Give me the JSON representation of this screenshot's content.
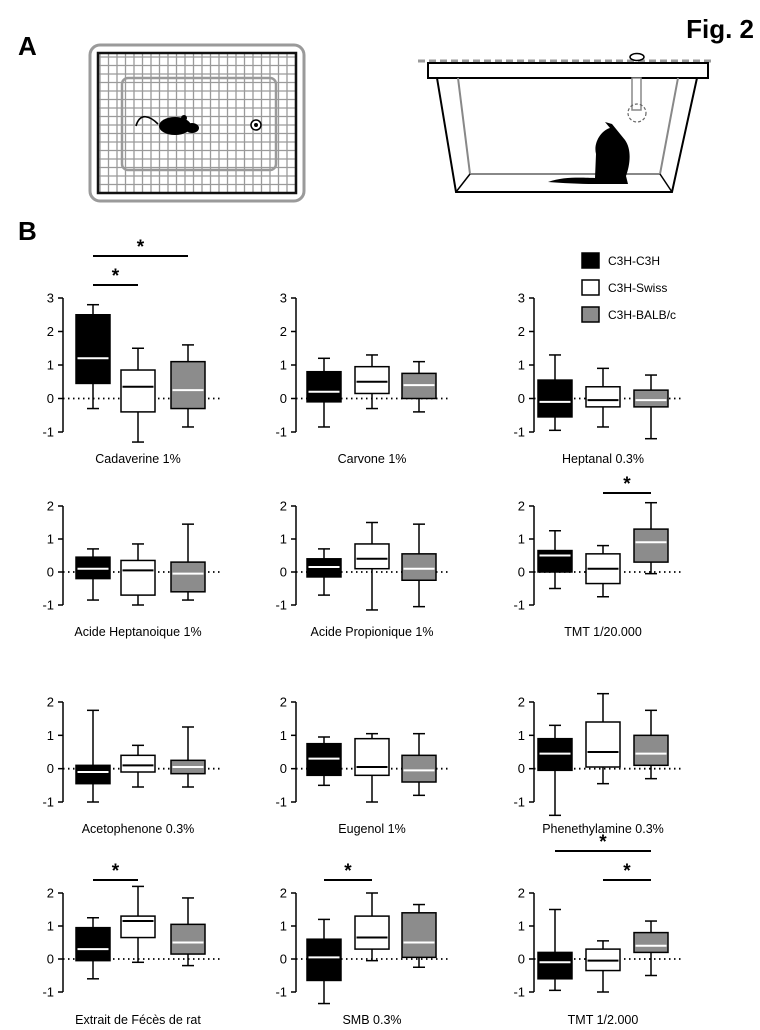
{
  "figure": {
    "title": "Fig. 2",
    "panel_a_label": "A",
    "panel_b_label": "B"
  },
  "legend": [
    {
      "label": "C3H-C3H",
      "color": "#000000"
    },
    {
      "label": "C3H-Swiss",
      "color": "#ffffff"
    },
    {
      "label": "C3H-BALB/c",
      "color": "#8c8c8c"
    }
  ],
  "significance_marker": "*",
  "chart_data": [
    {
      "type": "boxplot",
      "title": "Cadaverine 1%",
      "ylim": [
        -1,
        3
      ],
      "yticks": [
        -1,
        0,
        1,
        2,
        3
      ],
      "series": [
        {
          "name": "C3H-C3H",
          "min": -0.3,
          "q1": 0.45,
          "median": 1.2,
          "q3": 2.5,
          "max": 2.8
        },
        {
          "name": "C3H-Swiss",
          "min": -1.3,
          "q1": -0.4,
          "median": 0.35,
          "q3": 0.85,
          "max": 1.5
        },
        {
          "name": "C3H-BALB/c",
          "min": -0.85,
          "q1": -0.3,
          "median": 0.25,
          "q3": 1.1,
          "max": 1.6
        }
      ],
      "comparisons": [
        [
          0,
          1
        ],
        [
          0,
          2
        ]
      ]
    },
    {
      "type": "boxplot",
      "title": "Carvone 1%",
      "ylim": [
        -1,
        3
      ],
      "yticks": [
        -1,
        0,
        1,
        2,
        3
      ],
      "series": [
        {
          "name": "C3H-C3H",
          "min": -0.85,
          "q1": -0.1,
          "median": 0.2,
          "q3": 0.8,
          "max": 1.2
        },
        {
          "name": "C3H-Swiss",
          "min": -0.3,
          "q1": 0.15,
          "median": 0.5,
          "q3": 0.95,
          "max": 1.3
        },
        {
          "name": "C3H-BALB/c",
          "min": -0.4,
          "q1": 0.0,
          "median": 0.4,
          "q3": 0.75,
          "max": 1.1
        }
      ],
      "comparisons": []
    },
    {
      "type": "boxplot",
      "title": "Heptanal 0.3%",
      "ylim": [
        -1,
        3
      ],
      "yticks": [
        -1,
        0,
        1,
        2,
        3
      ],
      "series": [
        {
          "name": "C3H-C3H",
          "min": -0.95,
          "q1": -0.55,
          "median": -0.1,
          "q3": 0.55,
          "max": 1.3
        },
        {
          "name": "C3H-Swiss",
          "min": -0.85,
          "q1": -0.25,
          "median": -0.05,
          "q3": 0.35,
          "max": 0.9
        },
        {
          "name": "C3H-BALB/c",
          "min": -1.2,
          "q1": -0.25,
          "median": -0.05,
          "q3": 0.25,
          "max": 0.7
        }
      ],
      "comparisons": []
    },
    {
      "type": "boxplot",
      "title": "Acide Heptanoique 1%",
      "ylim": [
        -1,
        2
      ],
      "yticks": [
        -1,
        0,
        1,
        2
      ],
      "series": [
        {
          "name": "C3H-C3H",
          "min": -0.85,
          "q1": -0.2,
          "median": 0.1,
          "q3": 0.45,
          "max": 0.7
        },
        {
          "name": "C3H-Swiss",
          "min": -1.0,
          "q1": -0.7,
          "median": 0.05,
          "q3": 0.35,
          "max": 0.85
        },
        {
          "name": "C3H-BALB/c",
          "min": -0.85,
          "q1": -0.6,
          "median": -0.05,
          "q3": 0.3,
          "max": 1.45
        }
      ],
      "comparisons": []
    },
    {
      "type": "boxplot",
      "title": "Acide Propionique 1%",
      "ylim": [
        -1,
        2
      ],
      "yticks": [
        -1,
        0,
        1,
        2
      ],
      "series": [
        {
          "name": "C3H-C3H",
          "min": -0.7,
          "q1": -0.15,
          "median": 0.15,
          "q3": 0.4,
          "max": 0.7
        },
        {
          "name": "C3H-Swiss",
          "min": -1.15,
          "q1": 0.1,
          "median": 0.4,
          "q3": 0.85,
          "max": 1.5
        },
        {
          "name": "C3H-BALB/c",
          "min": -1.05,
          "q1": -0.25,
          "median": 0.1,
          "q3": 0.55,
          "max": 1.45
        }
      ],
      "comparisons": []
    },
    {
      "type": "boxplot",
      "title": "TMT 1/20.000",
      "ylim": [
        -1,
        2
      ],
      "yticks": [
        -1,
        0,
        1,
        2
      ],
      "series": [
        {
          "name": "C3H-C3H",
          "min": -0.5,
          "q1": 0.0,
          "median": 0.5,
          "q3": 0.65,
          "max": 1.25
        },
        {
          "name": "C3H-Swiss",
          "min": -0.75,
          "q1": -0.35,
          "median": 0.1,
          "q3": 0.55,
          "max": 0.8
        },
        {
          "name": "C3H-BALB/c",
          "min": -0.05,
          "q1": 0.3,
          "median": 0.9,
          "q3": 1.3,
          "max": 2.1
        }
      ],
      "comparisons": [
        [
          1,
          2
        ]
      ]
    },
    {
      "type": "boxplot",
      "title": "Acetophenone 0.3%",
      "ylim": [
        -1,
        2
      ],
      "yticks": [
        -1,
        0,
        1,
        2
      ],
      "series": [
        {
          "name": "C3H-C3H",
          "min": -1.0,
          "q1": -0.45,
          "median": -0.1,
          "q3": 0.1,
          "max": 1.75
        },
        {
          "name": "C3H-Swiss",
          "min": -0.55,
          "q1": -0.1,
          "median": 0.1,
          "q3": 0.4,
          "max": 0.7
        },
        {
          "name": "C3H-BALB/c",
          "min": -0.55,
          "q1": -0.15,
          "median": 0.05,
          "q3": 0.25,
          "max": 1.25
        }
      ],
      "comparisons": []
    },
    {
      "type": "boxplot",
      "title": "Eugenol 1%",
      "ylim": [
        -1,
        2
      ],
      "yticks": [
        -1,
        0,
        1,
        2
      ],
      "series": [
        {
          "name": "C3H-C3H",
          "min": -0.5,
          "q1": -0.2,
          "median": 0.3,
          "q3": 0.75,
          "max": 0.95
        },
        {
          "name": "C3H-Swiss",
          "min": -1.0,
          "q1": -0.2,
          "median": 0.05,
          "q3": 0.9,
          "max": 1.05
        },
        {
          "name": "C3H-BALB/c",
          "min": -0.8,
          "q1": -0.4,
          "median": -0.05,
          "q3": 0.4,
          "max": 1.05
        }
      ],
      "comparisons": []
    },
    {
      "type": "boxplot",
      "title": "Phenethylamine 0.3%",
      "ylim": [
        -1,
        2
      ],
      "yticks": [
        -1,
        0,
        1,
        2
      ],
      "series": [
        {
          "name": "C3H-C3H",
          "min": -1.4,
          "q1": -0.05,
          "median": 0.45,
          "q3": 0.9,
          "max": 1.3
        },
        {
          "name": "C3H-Swiss",
          "min": -0.45,
          "q1": 0.05,
          "median": 0.5,
          "q3": 1.4,
          "max": 2.25
        },
        {
          "name": "C3H-BALB/c",
          "min": -0.3,
          "q1": 0.1,
          "median": 0.45,
          "q3": 1.0,
          "max": 1.75
        }
      ],
      "comparisons": []
    },
    {
      "type": "boxplot",
      "title": "Extrait de Fécès de rat",
      "ylim": [
        -1,
        2
      ],
      "yticks": [
        -1,
        0,
        1,
        2
      ],
      "series": [
        {
          "name": "C3H-C3H",
          "min": -0.6,
          "q1": -0.05,
          "median": 0.3,
          "q3": 0.95,
          "max": 1.25
        },
        {
          "name": "C3H-Swiss",
          "min": -0.1,
          "q1": 0.65,
          "median": 1.15,
          "q3": 1.3,
          "max": 2.2
        },
        {
          "name": "C3H-BALB/c",
          "min": -0.2,
          "q1": 0.15,
          "median": 0.5,
          "q3": 1.05,
          "max": 1.85
        }
      ],
      "comparisons": [
        [
          0,
          1
        ]
      ]
    },
    {
      "type": "boxplot",
      "title": "SMB 0.3%",
      "ylim": [
        -1,
        2
      ],
      "yticks": [
        -1,
        0,
        1,
        2
      ],
      "series": [
        {
          "name": "C3H-C3H",
          "min": -1.35,
          "q1": -0.65,
          "median": 0.05,
          "q3": 0.6,
          "max": 1.2
        },
        {
          "name": "C3H-Swiss",
          "min": -0.05,
          "q1": 0.3,
          "median": 0.65,
          "q3": 1.3,
          "max": 2.0
        },
        {
          "name": "C3H-BALB/c",
          "min": -0.25,
          "q1": 0.05,
          "median": 0.5,
          "q3": 1.4,
          "max": 1.65
        }
      ],
      "comparisons": [
        [
          0,
          1
        ]
      ]
    },
    {
      "type": "boxplot",
      "title": "TMT 1/2.000",
      "ylim": [
        -1,
        2
      ],
      "yticks": [
        -1,
        0,
        1,
        2
      ],
      "series": [
        {
          "name": "C3H-C3H",
          "min": -0.95,
          "q1": -0.6,
          "median": -0.1,
          "q3": 0.2,
          "max": 1.5
        },
        {
          "name": "C3H-Swiss",
          "min": -1.0,
          "q1": -0.35,
          "median": -0.05,
          "q3": 0.3,
          "max": 0.55
        },
        {
          "name": "C3H-BALB/c",
          "min": -0.5,
          "q1": 0.2,
          "median": 0.4,
          "q3": 0.8,
          "max": 1.15
        }
      ],
      "comparisons": [
        [
          1,
          2
        ],
        [
          0,
          2
        ]
      ]
    }
  ]
}
